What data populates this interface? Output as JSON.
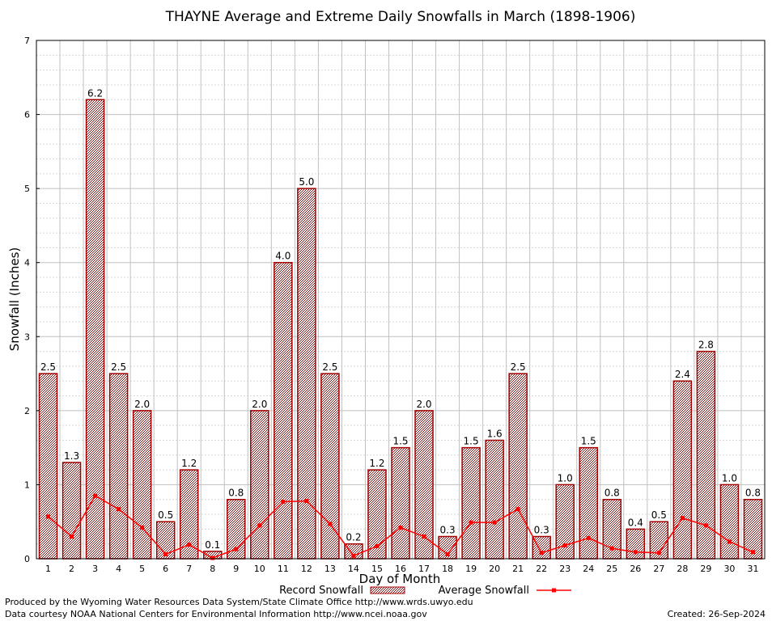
{
  "colors": {
    "bar_fill": "#a97a7a",
    "bar_stroke": "#a00000",
    "avg_line": "#ff0000",
    "grid_major": "#c0c0c0",
    "grid_minor": "#d8d8d8"
  },
  "chart_data": {
    "type": "bar",
    "title": "THAYNE Average and Extreme Daily Snowfalls in March (1898-1906)",
    "xlabel": "Day of Month",
    "ylabel": "Snowfall (Inches)",
    "ylim": [
      0,
      7
    ],
    "yticks": [
      0,
      1,
      2,
      3,
      4,
      5,
      6,
      7
    ],
    "categories": [
      "1",
      "2",
      "3",
      "4",
      "5",
      "6",
      "7",
      "8",
      "9",
      "10",
      "11",
      "12",
      "13",
      "14",
      "15",
      "16",
      "17",
      "18",
      "19",
      "20",
      "21",
      "22",
      "23",
      "24",
      "25",
      "26",
      "27",
      "28",
      "29",
      "30",
      "31"
    ],
    "series": [
      {
        "name": "Record Snowfall",
        "type": "bar",
        "values": [
          2.5,
          1.3,
          6.2,
          2.5,
          2.0,
          0.5,
          1.2,
          0.1,
          0.8,
          2.0,
          4.0,
          5.0,
          2.5,
          0.2,
          1.2,
          1.5,
          2.0,
          0.3,
          1.5,
          1.6,
          2.5,
          0.3,
          1.0,
          1.5,
          0.8,
          0.4,
          0.5,
          2.4,
          2.8,
          1.0,
          0.8
        ],
        "labels": [
          "2.5",
          "1.3",
          "6.2",
          "2.5",
          "2.0",
          "0.5",
          "1.2",
          "0.1",
          "0.8",
          "2.0",
          "4.0",
          "5.0",
          "2.5",
          "0.2",
          "1.2",
          "1.5",
          "2.0",
          "0.3",
          "1.5",
          "1.6",
          "2.5",
          "0.3",
          "1.0",
          "1.5",
          "0.8",
          "0.4",
          "0.5",
          "2.4",
          "2.8",
          "1.0",
          "0.8"
        ]
      },
      {
        "name": "Average Snowfall",
        "type": "line",
        "values": [
          0.57,
          0.3,
          0.85,
          0.67,
          0.42,
          0.06,
          0.19,
          0.01,
          0.13,
          0.45,
          0.77,
          0.78,
          0.47,
          0.04,
          0.17,
          0.42,
          0.3,
          0.06,
          0.49,
          0.49,
          0.67,
          0.08,
          0.18,
          0.28,
          0.14,
          0.09,
          0.08,
          0.55,
          0.45,
          0.23,
          0.09
        ]
      }
    ],
    "legend": [
      "Record Snowfall",
      "Average Snowfall"
    ],
    "grid": true
  },
  "footer": {
    "left1": "Produced by the Wyoming Water Resources Data System/State Climate Office http://www.wrds.uwyo.edu",
    "left2": "Data courtesy NOAA National Centers for Environmental Information http://www.ncei.noaa.gov",
    "right": "Created:  26-Sep-2024"
  }
}
